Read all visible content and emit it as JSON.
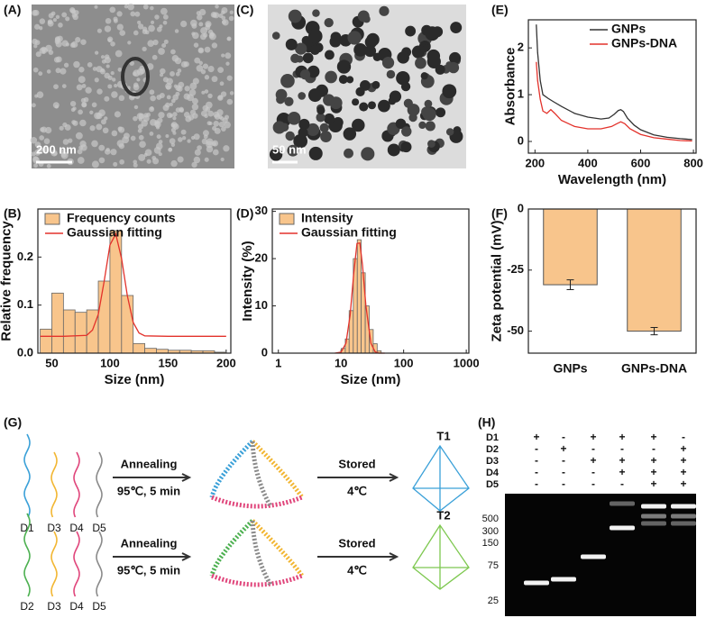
{
  "panel_labels": [
    "(A)",
    "(B)",
    "(C)",
    "(D)",
    "(E)",
    "(F)",
    "(G)",
    "(H)"
  ],
  "panel_a": {
    "scale_bar": "200 nm"
  },
  "panel_c": {
    "scale_bar": "50 nm"
  },
  "chart_data": [
    {
      "type": "histogram",
      "xlabel": "Size (nm)",
      "ylabel": "Relative frequency",
      "xlim": [
        38,
        204
      ],
      "xticks": [
        50,
        100,
        150,
        200
      ],
      "ylim": [
        0,
        0.3
      ],
      "yticks": [
        {
          "value": 0,
          "label": "0.0"
        },
        0.1,
        0.2
      ],
      "legend": "upper left",
      "bins": [
        40,
        50,
        60,
        70,
        80,
        90,
        100,
        110,
        120,
        130,
        140,
        150,
        160,
        170,
        180,
        190,
        200
      ],
      "series": [
        {
          "name": "Frequency counts",
          "type": "histogram",
          "color": "#f8c58c",
          "values": [
            0.05,
            0.125,
            0.09,
            0.085,
            0.09,
            0.15,
            0.255,
            0.12,
            0.02,
            0.01,
            0.008,
            0.006,
            0.006,
            0.005,
            0.005,
            0.002
          ]
        },
        {
          "name": "Gaussian fitting",
          "type": "line",
          "color": "#e3322b",
          "x": [
            40,
            60,
            80,
            85,
            90,
            95,
            100,
            105,
            110,
            115,
            120,
            125,
            130,
            150,
            200
          ],
          "values": [
            0.035,
            0.035,
            0.037,
            0.048,
            0.081,
            0.149,
            0.225,
            0.248,
            0.197,
            0.119,
            0.064,
            0.042,
            0.036,
            0.035,
            0.035
          ]
        }
      ]
    },
    {
      "type": "histogram",
      "xlabel": "Size (nm)",
      "ylabel": "Intensity (%)",
      "xscale": "log",
      "xlim": [
        0.8,
        1100
      ],
      "xticks": [
        1,
        10,
        100,
        1000
      ],
      "ylim": [
        0,
        30.5
      ],
      "yticks": [
        0,
        10,
        20,
        30
      ],
      "legend": "upper left",
      "bins": [
        10.1,
        11.7,
        13.5,
        15.7,
        18.2,
        21.0,
        24.4,
        28.2,
        32.7,
        37.8,
        43.8
      ],
      "series": [
        {
          "name": "Intensity",
          "type": "histogram",
          "color": "#f8c58c",
          "values": [
            1,
            3,
            9,
            20,
            24,
            17,
            10,
            5,
            2,
            0.5
          ]
        },
        {
          "name": "Gaussian fitting",
          "type": "line",
          "color": "#e3322b",
          "x": [
            8,
            10,
            12,
            14,
            16,
            18,
            20,
            22,
            25,
            30,
            35,
            40,
            50
          ],
          "values": [
            0,
            0.2,
            2.1,
            8.1,
            17,
            23.2,
            23.3,
            18.7,
            10,
            2.1,
            0.3,
            0,
            0
          ]
        }
      ]
    },
    {
      "type": "line",
      "xlabel": "Wavelength (nm)",
      "ylabel": "Absorbance",
      "xlim": [
        175,
        810
      ],
      "xticks": [
        200,
        400,
        600,
        800
      ],
      "ylim": [
        -0.25,
        2.6
      ],
      "yticks": [
        0,
        1,
        2
      ],
      "legend": "upper right",
      "series": [
        {
          "name": "GNPs",
          "type": "line",
          "color": "#333333",
          "x": [
            205,
            210,
            220,
            230,
            250,
            270,
            300,
            350,
            400,
            450,
            480,
            500,
            515,
            525,
            535,
            550,
            575,
            600,
            650,
            700,
            750,
            795
          ],
          "values": [
            2.5,
            1.9,
            1.3,
            1.0,
            0.92,
            0.85,
            0.75,
            0.6,
            0.52,
            0.48,
            0.5,
            0.58,
            0.66,
            0.68,
            0.64,
            0.5,
            0.35,
            0.25,
            0.14,
            0.09,
            0.06,
            0.04
          ]
        },
        {
          "name": "GNPs-DNA",
          "type": "line",
          "color": "#e3322b",
          "x": [
            205,
            210,
            220,
            230,
            245,
            260,
            275,
            300,
            350,
            400,
            450,
            490,
            510,
            525,
            540,
            560,
            600,
            650,
            700,
            750,
            795
          ],
          "values": [
            1.7,
            1.3,
            0.9,
            0.65,
            0.6,
            0.68,
            0.6,
            0.45,
            0.32,
            0.27,
            0.27,
            0.32,
            0.38,
            0.42,
            0.38,
            0.27,
            0.15,
            0.08,
            0.05,
            0.02,
            0.01
          ]
        }
      ]
    },
    {
      "type": "bar",
      "ylabel": "Zeta potential (mV)",
      "categories": [
        "GNPs",
        "GNPs-DNA"
      ],
      "values": [
        -31,
        -50
      ],
      "errors": [
        2,
        1.5
      ],
      "color": "#f8c58c",
      "ylim": [
        -59,
        0
      ],
      "yticks": [
        0,
        -25,
        -50
      ]
    }
  ],
  "diagram": {
    "rows": [
      {
        "strands": [
          "D1",
          "D3",
          "D4",
          "D5"
        ],
        "step1": "Annealing",
        "step1_condition": "95℃, 5 min",
        "step2": "Stored",
        "step2_condition": "4℃",
        "product": "T1"
      },
      {
        "strands": [
          "D2",
          "D3",
          "D4",
          "D5"
        ],
        "step1": "Annealing",
        "step1_condition": "95℃, 5 min",
        "step2": "Stored",
        "step2_condition": "4℃",
        "product": "T2"
      }
    ]
  },
  "gel": {
    "rows": [
      {
        "label": "D1",
        "signs": [
          "+",
          "-",
          "+",
          "+",
          "+",
          "-"
        ]
      },
      {
        "label": "D2",
        "signs": [
          "-",
          "+",
          "-",
          "-",
          "-",
          "+"
        ]
      },
      {
        "label": "D3",
        "signs": [
          "-",
          "-",
          "+",
          "+",
          "+",
          "+"
        ]
      },
      {
        "label": "D4",
        "signs": [
          "-",
          "-",
          "-",
          "+",
          "+",
          "+"
        ]
      },
      {
        "label": "D5",
        "signs": [
          "-",
          "-",
          "-",
          "-",
          "+",
          "+"
        ]
      }
    ],
    "ladder": [
      500,
      300,
      150,
      75,
      25
    ]
  }
}
